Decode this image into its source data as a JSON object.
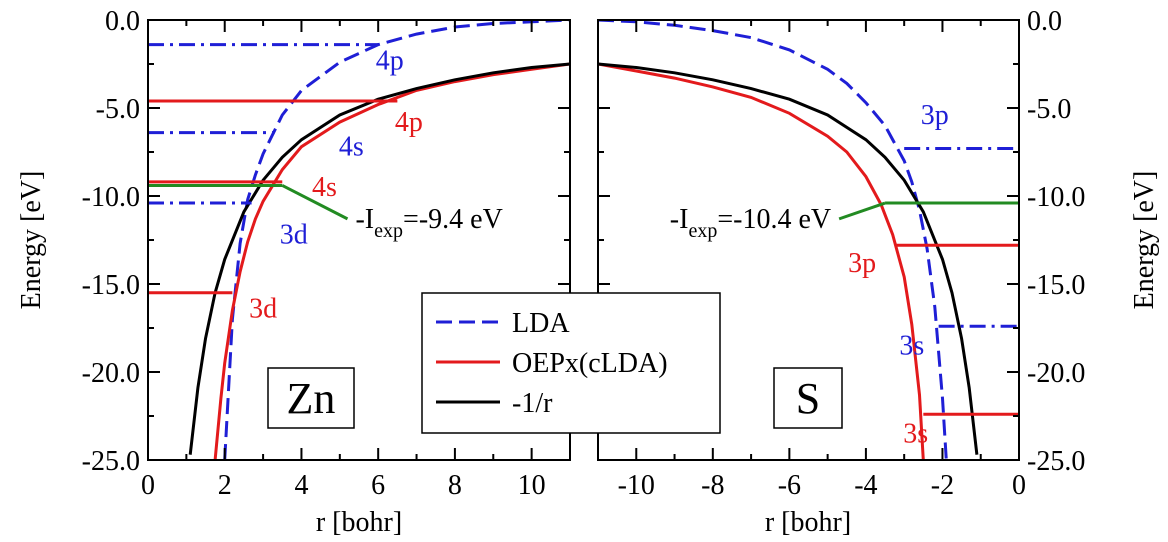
{
  "figure": {
    "left_ylabel": "Energy [eV]",
    "right_ylabel": "Energy [eV]",
    "legend": [
      {
        "label": "LDA",
        "style": "dashed",
        "color": "#1f1fd6"
      },
      {
        "label": "OEPx(cLDA)",
        "style": "solid",
        "color": "#e31a1c"
      },
      {
        "label": "-1/r",
        "style": "solid",
        "color": "#000000"
      }
    ]
  },
  "chart_data": [
    {
      "type": "line",
      "panel": "Zn",
      "element_label": "Zn",
      "xlabel": "r [bohr]",
      "ylabel": "Energy [eV]",
      "xlim": [
        0,
        11
      ],
      "ylim": [
        -25,
        0
      ],
      "xticks": [
        "0",
        "2",
        "4",
        "6",
        "8",
        "10"
      ],
      "yticks": [
        "0.0",
        "-5.0",
        "-10.0",
        "-15.0",
        "-20.0",
        "-25.0"
      ],
      "series": [
        {
          "name": "LDA",
          "color": "#1f1fd6",
          "dash": "dashed",
          "x": [
            2.0,
            2.2,
            2.4,
            2.6,
            2.8,
            3.0,
            3.5,
            4.0,
            5.0,
            6.0,
            7.0,
            8.0,
            9.0,
            10.0,
            11.0
          ],
          "y": [
            -25.0,
            -17.0,
            -12.7,
            -10.2,
            -8.8,
            -7.6,
            -5.4,
            -4.0,
            -2.4,
            -1.4,
            -0.8,
            -0.4,
            -0.2,
            -0.1,
            0.0
          ]
        },
        {
          "name": "OEPx(cLDA)",
          "color": "#e31a1c",
          "dash": "solid",
          "x": [
            1.75,
            1.9,
            2.0,
            2.2,
            2.4,
            2.6,
            2.8,
            3.0,
            3.5,
            4.0,
            5.0,
            6.0,
            7.0,
            8.0,
            9.0,
            10.0,
            11.0
          ],
          "y": [
            -25.0,
            -21.5,
            -19.5,
            -16.5,
            -14.3,
            -12.6,
            -11.3,
            -10.3,
            -8.5,
            -7.2,
            -5.8,
            -4.8,
            -4.0,
            -3.5,
            -3.1,
            -2.8,
            -2.5
          ]
        },
        {
          "name": "-1/r",
          "color": "#000000",
          "dash": "solid",
          "x": [
            1.1,
            1.3,
            1.5,
            1.75,
            2.0,
            2.5,
            3.0,
            3.5,
            4.0,
            5.0,
            6.0,
            7.0,
            8.0,
            9.0,
            10.0,
            11.0
          ],
          "y": [
            -24.7,
            -20.9,
            -18.1,
            -15.5,
            -13.6,
            -10.9,
            -9.1,
            -7.8,
            -6.8,
            -5.4,
            -4.5,
            -3.9,
            -3.4,
            -3.0,
            -2.7,
            -2.5
          ]
        }
      ],
      "levels": [
        {
          "series": "LDA",
          "label": "4p",
          "energy": -1.4,
          "x_end": 6.0,
          "dash": "dashdot",
          "color": "#1f1fd6",
          "label_x": 6.3,
          "label_y": -2.3
        },
        {
          "series": "LDA",
          "label": "4s",
          "energy": -6.4,
          "x_end": 3.3,
          "dash": "dashdot",
          "color": "#1f1fd6",
          "label_x": 5.3,
          "label_y": -7.2
        },
        {
          "series": "LDA",
          "label": "3d",
          "energy": -10.4,
          "x_end": 2.7,
          "dash": "dashdot",
          "color": "#1f1fd6",
          "label_x": 3.8,
          "label_y": -12.2
        },
        {
          "series": "OEPx(cLDA)",
          "label": "4p",
          "energy": -4.6,
          "x_end": 6.5,
          "dash": "solid",
          "color": "#e31a1c",
          "label_x": 6.8,
          "label_y": -5.8
        },
        {
          "series": "OEPx(cLDA)",
          "label": "4s",
          "energy": -9.2,
          "x_end": 3.5,
          "dash": "solid",
          "color": "#e31a1c",
          "label_x": 4.6,
          "label_y": -9.5
        },
        {
          "series": "OEPx(cLDA)",
          "label": "3d",
          "energy": -15.5,
          "x_end": 2.2,
          "dash": "solid",
          "color": "#e31a1c",
          "label_x": 3.0,
          "label_y": -16.4
        }
      ],
      "iexp": {
        "text_main": "-I",
        "text_sub": "exp",
        "text_value": "=-9.4 eV",
        "energy": -9.4,
        "color": "#228b22",
        "x_from": 0,
        "x_knee": 3.5,
        "x_label": 5.2,
        "y_label": -11.3
      }
    },
    {
      "type": "line",
      "panel": "S",
      "element_label": "S",
      "xlabel": "r [bohr]",
      "ylabel": "Energy [eV]",
      "xlim": [
        -11,
        0
      ],
      "ylim": [
        -25,
        0
      ],
      "xticks": [
        "-10",
        "-8",
        "-6",
        "-4",
        "-2",
        "0"
      ],
      "yticks": [
        "0.0",
        "-5.0",
        "-10.0",
        "-15.0",
        "-20.0",
        "-25.0"
      ],
      "series": [
        {
          "name": "LDA",
          "color": "#1f1fd6",
          "dash": "dashed",
          "x": [
            -11.0,
            -10.0,
            -9.0,
            -8.0,
            -7.0,
            -6.0,
            -5.0,
            -4.5,
            -4.0,
            -3.5,
            -3.0,
            -2.8,
            -2.6,
            -2.4,
            -2.2,
            -2.0,
            -1.9
          ],
          "y": [
            0.0,
            -0.1,
            -0.3,
            -0.6,
            -1.0,
            -1.7,
            -2.8,
            -3.6,
            -4.7,
            -6.0,
            -8.0,
            -9.2,
            -10.8,
            -13.0,
            -16.3,
            -21.5,
            -25.0
          ]
        },
        {
          "name": "OEPx(cLDA)",
          "color": "#e31a1c",
          "dash": "solid",
          "x": [
            -11.0,
            -10.0,
            -9.0,
            -8.0,
            -7.0,
            -6.0,
            -5.0,
            -4.5,
            -4.0,
            -3.6,
            -3.3,
            -3.0,
            -2.8,
            -2.6,
            -2.5
          ],
          "y": [
            -2.5,
            -2.9,
            -3.3,
            -3.8,
            -4.4,
            -5.3,
            -6.6,
            -7.5,
            -8.9,
            -10.5,
            -12.2,
            -14.6,
            -17.3,
            -21.3,
            -25.0
          ]
        },
        {
          "name": "-1/r",
          "color": "#000000",
          "dash": "solid",
          "x": [
            -11.0,
            -10.0,
            -9.0,
            -8.0,
            -7.0,
            -6.0,
            -5.0,
            -4.0,
            -3.5,
            -3.0,
            -2.5,
            -2.0,
            -1.75,
            -1.5,
            -1.3,
            -1.1
          ],
          "y": [
            -2.5,
            -2.7,
            -3.0,
            -3.4,
            -3.9,
            -4.5,
            -5.4,
            -6.8,
            -7.8,
            -9.1,
            -10.9,
            -13.6,
            -15.5,
            -18.1,
            -20.9,
            -24.7
          ]
        }
      ],
      "levels": [
        {
          "series": "LDA",
          "label": "3p",
          "energy": -7.3,
          "x_start": -3.0,
          "dash": "dashdot",
          "color": "#1f1fd6",
          "label_x": -2.2,
          "label_y": -5.4
        },
        {
          "series": "LDA",
          "label": "3s",
          "energy": -17.4,
          "x_start": -2.1,
          "dash": "dashdot",
          "color": "#1f1fd6",
          "label_x": -2.8,
          "label_y": -18.5
        },
        {
          "series": "OEPx(cLDA)",
          "label": "3p",
          "energy": -12.8,
          "x_start": -3.2,
          "dash": "solid",
          "color": "#e31a1c",
          "label_x": -4.1,
          "label_y": -13.8
        },
        {
          "series": "OEPx(cLDA)",
          "label": "3s",
          "energy": -22.4,
          "x_start": -2.5,
          "dash": "solid",
          "color": "#e31a1c",
          "label_x": -2.7,
          "label_y": -23.5
        }
      ],
      "iexp": {
        "text_main": "-I",
        "text_sub": "exp",
        "text_value": "=-10.4 eV",
        "energy": -10.4,
        "color": "#228b22",
        "x_to": 0,
        "x_knee": -3.5,
        "x_label": -4.7,
        "y_label": -11.3
      }
    }
  ]
}
